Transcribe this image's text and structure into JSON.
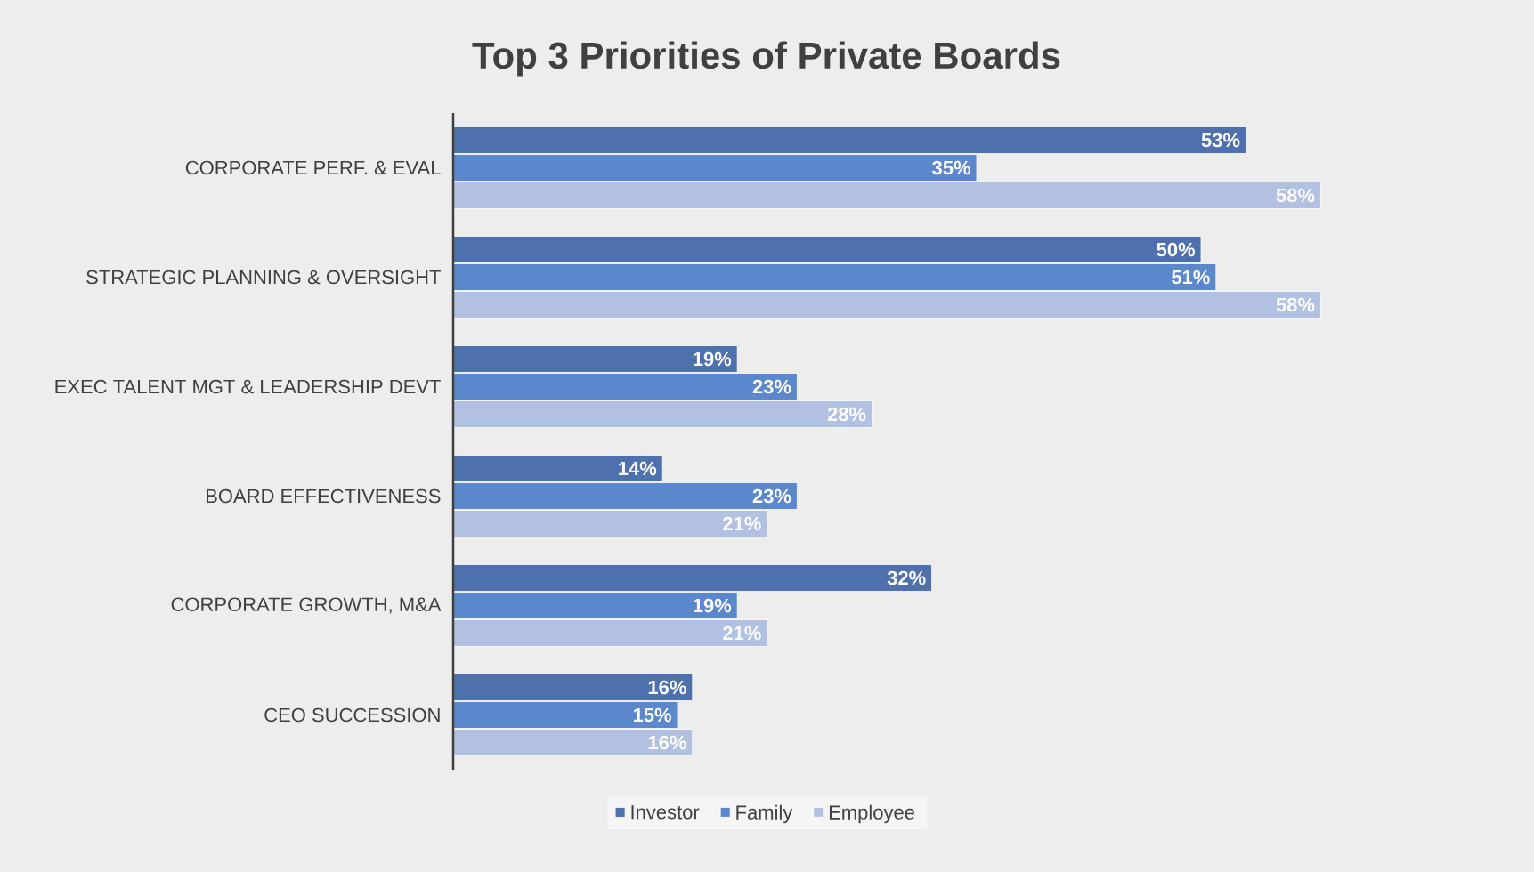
{
  "chart_data": {
    "type": "bar",
    "orientation": "horizontal",
    "title": "Top 3 Priorities of Private Boards",
    "categories": [
      "CORPORATE PERF. & EVAL",
      "STRATEGIC PLANNING & OVERSIGHT",
      "EXEC TALENT MGT & LEADERSHIP DEVT",
      "BOARD EFFECTIVENESS",
      "CORPORATE GROWTH, M&A",
      "CEO SUCCESSION"
    ],
    "series": [
      {
        "name": "Investor",
        "color": "#4e71ae",
        "values": [
          53,
          50,
          19,
          14,
          32,
          16
        ],
        "value_labels": [
          "53%",
          "50%",
          "19%",
          "14%",
          "32%",
          "16%"
        ]
      },
      {
        "name": "Family",
        "color": "#5b87cc",
        "values": [
          35,
          51,
          23,
          23,
          19,
          15
        ],
        "value_labels": [
          "35%",
          "51%",
          "23%",
          "23%",
          "19%",
          "15%"
        ]
      },
      {
        "name": "Employee",
        "color": "#b2c1e2",
        "values": [
          58,
          58,
          28,
          21,
          21,
          16
        ],
        "value_labels": [
          "58%",
          "58%",
          "28%",
          "21%",
          "21%",
          "16%"
        ]
      }
    ],
    "legend": "bottom"
  }
}
